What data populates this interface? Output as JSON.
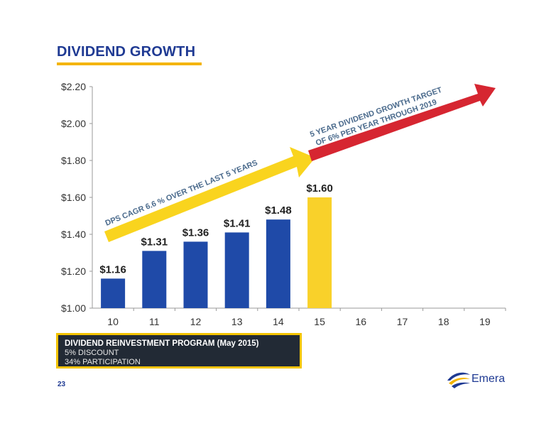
{
  "title": "DIVIDEND GROWTH",
  "colors": {
    "bar_blue": "#1f4aa8",
    "bar_highlight": "#f9d12a",
    "arrow_yellow": "#f9d41e",
    "arrow_red": "#d62631",
    "title_blue": "#1f3a93",
    "underline": "#f4b400"
  },
  "chart_data": {
    "type": "bar",
    "categories": [
      "10",
      "11",
      "12",
      "13",
      "14",
      "15",
      "16",
      "17",
      "18",
      "19"
    ],
    "values": [
      1.16,
      1.31,
      1.36,
      1.41,
      1.48,
      1.6,
      null,
      null,
      null,
      null
    ],
    "value_labels": [
      "$1.16",
      "$1.31",
      "$1.36",
      "$1.41",
      "$1.48",
      "$1.60",
      "",
      "",
      "",
      ""
    ],
    "highlight_index": 5,
    "ylim": [
      1.0,
      2.2
    ],
    "yticks": [
      1.0,
      1.2,
      1.4,
      1.6,
      1.8,
      2.0,
      2.2
    ],
    "ytick_labels": [
      "$1.00",
      "$1.20",
      "$1.40",
      "$1.60",
      "$1.80",
      "$2.00",
      "$2.20"
    ],
    "grid": false,
    "annotations": [
      {
        "text": "DPS CAGR 6.6 % OVER THE LAST 5 YEARS",
        "arrow_color": "yellow"
      },
      {
        "text_line1": "5 YEAR DIVIDEND GROWTH TARGET",
        "text_line2": "OF 6% PER YEAR THROUGH 2019",
        "arrow_color": "red"
      }
    ]
  },
  "program": {
    "title": "DIVIDEND REINVESTMENT PROGRAM (May 2015)",
    "line1": "5% DISCOUNT",
    "line2": "34% PARTICIPATION"
  },
  "page_number": "23",
  "logo_text": "Emera",
  "logo_icon": "emera-logo-icon"
}
